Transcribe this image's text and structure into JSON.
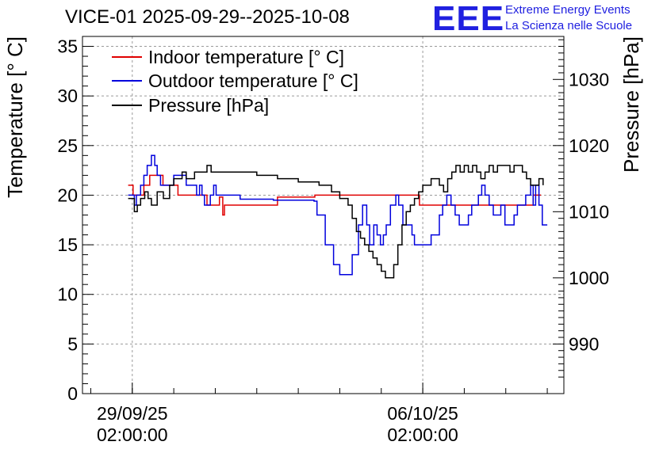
{
  "header": {
    "title": "VICE-01 2025-09-29--2025-10-08",
    "logo_letters": "EEE",
    "logo_line1": "Extreme Energy Events",
    "logo_line2": "La Scienza nelle Scuole",
    "logo_color": "#2020e0"
  },
  "chart_data": {
    "type": "line",
    "ylabel": "Temperature [° C]",
    "y2label": "Pressure [hPa]",
    "ylim": [
      0,
      36
    ],
    "y2lim": [
      982.5,
      1036.5
    ],
    "xlim": [
      -1.2,
      10.4
    ],
    "x_ticks": [
      {
        "x": 0,
        "line1": "29/09/25",
        "line2": "02:00:00"
      },
      {
        "x": 7,
        "line1": "06/10/25",
        "line2": "02:00:00"
      }
    ],
    "y_ticks": [
      0,
      5,
      10,
      15,
      20,
      25,
      30,
      35
    ],
    "y2_ticks": [
      990,
      1000,
      1010,
      1020,
      1030
    ],
    "grid": true,
    "legend_position": "top-left",
    "series": [
      {
        "name": "Indoor temperature [° C]",
        "axis": "left",
        "color": "#e00000",
        "points": [
          [
            -0.1,
            21
          ],
          [
            0.0,
            21
          ],
          [
            0.02,
            20
          ],
          [
            0.22,
            20
          ],
          [
            0.28,
            21
          ],
          [
            0.38,
            21
          ],
          [
            0.42,
            22
          ],
          [
            0.7,
            22
          ],
          [
            0.74,
            21
          ],
          [
            1.0,
            21
          ],
          [
            1.1,
            20
          ],
          [
            1.75,
            20
          ],
          [
            1.8,
            19
          ],
          [
            2.0,
            19
          ],
          [
            2.1,
            19.8
          ],
          [
            2.18,
            18
          ],
          [
            2.22,
            19
          ],
          [
            3.5,
            19.8
          ],
          [
            4.4,
            20
          ],
          [
            6.85,
            20
          ],
          [
            6.92,
            19
          ],
          [
            9.6,
            19
          ],
          [
            9.66,
            20
          ],
          [
            9.85,
            20
          ]
        ]
      },
      {
        "name": "Outdoor temperature [° C]",
        "axis": "left",
        "color": "#0000dd",
        "points": [
          [
            -0.1,
            20
          ],
          [
            0.0,
            20
          ],
          [
            0.05,
            19
          ],
          [
            0.1,
            20
          ],
          [
            0.2,
            21
          ],
          [
            0.28,
            22
          ],
          [
            0.36,
            23
          ],
          [
            0.46,
            24
          ],
          [
            0.54,
            23
          ],
          [
            0.6,
            22
          ],
          [
            0.68,
            21
          ],
          [
            0.9,
            21
          ],
          [
            1.0,
            22
          ],
          [
            1.18,
            22
          ],
          [
            1.3,
            21
          ],
          [
            1.55,
            20
          ],
          [
            1.62,
            21
          ],
          [
            1.68,
            20
          ],
          [
            1.74,
            19
          ],
          [
            1.82,
            19
          ],
          [
            1.88,
            20
          ],
          [
            1.96,
            21
          ],
          [
            2.02,
            20
          ],
          [
            2.1,
            20
          ],
          [
            2.6,
            19.6
          ],
          [
            3.4,
            19.5
          ],
          [
            4.38,
            19.4
          ],
          [
            4.45,
            18
          ],
          [
            4.65,
            15
          ],
          [
            4.85,
            13
          ],
          [
            5.0,
            12
          ],
          [
            5.2,
            12
          ],
          [
            5.3,
            14
          ],
          [
            5.45,
            17
          ],
          [
            5.55,
            19
          ],
          [
            5.65,
            17
          ],
          [
            5.72,
            15
          ],
          [
            5.82,
            17
          ],
          [
            5.9,
            16
          ],
          [
            5.98,
            15
          ],
          [
            6.05,
            16
          ],
          [
            6.12,
            17
          ],
          [
            6.22,
            19
          ],
          [
            6.35,
            20
          ],
          [
            6.42,
            19
          ],
          [
            6.52,
            17
          ],
          [
            6.64,
            17
          ],
          [
            6.74,
            16
          ],
          [
            6.8,
            15
          ],
          [
            7.1,
            15
          ],
          [
            7.2,
            16
          ],
          [
            7.3,
            16
          ],
          [
            7.4,
            18
          ],
          [
            7.48,
            19
          ],
          [
            7.58,
            20
          ],
          [
            7.68,
            19
          ],
          [
            7.78,
            18
          ],
          [
            7.88,
            17
          ],
          [
            8.0,
            17
          ],
          [
            8.1,
            18
          ],
          [
            8.18,
            19
          ],
          [
            8.26,
            19
          ],
          [
            8.34,
            20
          ],
          [
            8.42,
            21
          ],
          [
            8.5,
            20
          ],
          [
            8.6,
            19
          ],
          [
            8.7,
            18
          ],
          [
            8.78,
            18
          ],
          [
            8.88,
            19
          ],
          [
            8.98,
            17
          ],
          [
            9.12,
            17
          ],
          [
            9.2,
            18
          ],
          [
            9.28,
            19
          ],
          [
            9.38,
            19
          ],
          [
            9.48,
            20
          ],
          [
            9.6,
            21
          ],
          [
            9.66,
            19
          ],
          [
            9.72,
            21
          ],
          [
            9.8,
            19
          ],
          [
            9.88,
            17
          ],
          [
            10.0,
            17
          ]
        ]
      },
      {
        "name": "Pressure [hPa]",
        "axis": "right",
        "color": "#000000",
        "points": [
          [
            -0.1,
            1012
          ],
          [
            0.0,
            1012
          ],
          [
            0.05,
            1010
          ],
          [
            0.12,
            1011
          ],
          [
            0.2,
            1012
          ],
          [
            0.3,
            1013
          ],
          [
            0.38,
            1012
          ],
          [
            0.46,
            1011
          ],
          [
            0.6,
            1013
          ],
          [
            0.75,
            1012
          ],
          [
            0.9,
            1014
          ],
          [
            1.0,
            1015
          ],
          [
            1.1,
            1015
          ],
          [
            1.2,
            1016
          ],
          [
            1.3,
            1015
          ],
          [
            1.5,
            1016
          ],
          [
            1.7,
            1016
          ],
          [
            1.8,
            1017
          ],
          [
            1.9,
            1016
          ],
          [
            2.0,
            1016
          ],
          [
            2.5,
            1016
          ],
          [
            3.0,
            1015.5
          ],
          [
            3.5,
            1015
          ],
          [
            4.0,
            1014.5
          ],
          [
            4.5,
            1014
          ],
          [
            4.8,
            1013
          ],
          [
            5.0,
            1012
          ],
          [
            5.2,
            1011
          ],
          [
            5.3,
            1009
          ],
          [
            5.4,
            1007
          ],
          [
            5.5,
            1006
          ],
          [
            5.6,
            1005
          ],
          [
            5.7,
            1004
          ],
          [
            5.8,
            1003
          ],
          [
            5.9,
            1002
          ],
          [
            6.0,
            1001
          ],
          [
            6.1,
            1000
          ],
          [
            6.2,
            1000
          ],
          [
            6.3,
            1002
          ],
          [
            6.4,
            1005
          ],
          [
            6.5,
            1008
          ],
          [
            6.6,
            1010
          ],
          [
            6.7,
            1011
          ],
          [
            6.8,
            1012
          ],
          [
            6.9,
            1013
          ],
          [
            7.0,
            1014
          ],
          [
            7.1,
            1014
          ],
          [
            7.2,
            1015
          ],
          [
            7.3,
            1015
          ],
          [
            7.4,
            1014
          ],
          [
            7.5,
            1013
          ],
          [
            7.6,
            1015
          ],
          [
            7.7,
            1016
          ],
          [
            7.8,
            1017
          ],
          [
            7.9,
            1016
          ],
          [
            8.0,
            1017
          ],
          [
            8.1,
            1016
          ],
          [
            8.2,
            1017
          ],
          [
            8.3,
            1016
          ],
          [
            8.4,
            1015
          ],
          [
            8.5,
            1016
          ],
          [
            8.6,
            1017
          ],
          [
            8.7,
            1016
          ],
          [
            8.8,
            1017
          ],
          [
            9.0,
            1017
          ],
          [
            9.1,
            1016
          ],
          [
            9.2,
            1017
          ],
          [
            9.3,
            1017
          ],
          [
            9.4,
            1016
          ],
          [
            9.5,
            1015
          ],
          [
            9.6,
            1014
          ],
          [
            9.7,
            1014
          ],
          [
            9.8,
            1015
          ],
          [
            9.9,
            1014
          ]
        ]
      }
    ]
  }
}
